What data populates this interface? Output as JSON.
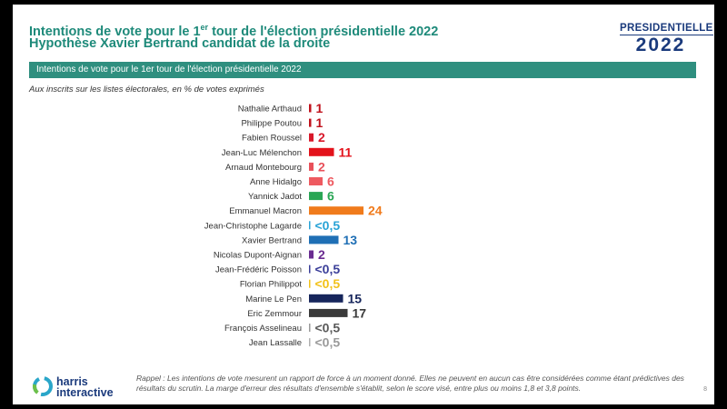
{
  "header": {
    "title_line1_a": "Intentions de vote pour le 1",
    "title_line1_sup": "er",
    "title_line1_b": " tour de l'élection présidentielle 2022",
    "title_line2": "Hypothèse Xavier Bertrand candidat de la droite"
  },
  "logo": {
    "top": "PRESIDENTIELLE",
    "year": "2022"
  },
  "band": {
    "text": "Intentions de vote pour le 1er tour de l'élection présidentielle 2022"
  },
  "note": "Aux inscrits sur les listes électorales, en % de votes exprimés",
  "brand": {
    "name_line1": "harris",
    "name_line2": "interactive"
  },
  "footer": {
    "text": "Rappel : Les intentions de vote mesurent un rapport de force à un moment donné. Elles ne peuvent en aucun cas être considérées comme étant prédictives des résultats du scrutin. La marge d'erreur des résultats d'ensemble s'établit, selon le score visé, entre plus ou moins 1,8 et 3,8 points."
  },
  "page_number": "8",
  "chart_data": {
    "type": "bar",
    "orientation": "horizontal",
    "categories": [
      "Nathalie Arthaud",
      "Philippe Poutou",
      "Fabien Roussel",
      "Jean-Luc Mélenchon",
      "Arnaud Montebourg",
      "Anne Hidalgo",
      "Yannick Jadot",
      "Emmanuel Macron",
      "Jean-Christophe Lagarde",
      "Xavier Bertrand",
      "Nicolas Dupont-Aignan",
      "Jean-Frédéric Poisson",
      "Florian Philippot",
      "Marine Le Pen",
      "Eric Zemmour",
      "François Asselineau",
      "Jean Lassalle"
    ],
    "values": [
      1,
      1,
      2,
      11,
      2,
      6,
      6,
      24,
      0.5,
      13,
      2,
      0.5,
      0.5,
      15,
      17,
      0.5,
      0.5
    ],
    "labels": [
      "1",
      "1",
      "2",
      "11",
      "2",
      "6",
      "6",
      "24",
      "<0,5",
      "13",
      "2",
      "<0,5",
      "<0,5",
      "15",
      "17",
      "<0,5",
      "<0,5"
    ],
    "colors": [
      "#c0121c",
      "#c0121c",
      "#d8182a",
      "#e3121b",
      "#e8505a",
      "#ee5a60",
      "#2aa655",
      "#f07b1c",
      "#29a3d6",
      "#1f6fb5",
      "#6a2c91",
      "#3b3f99",
      "#f2c21a",
      "#16255b",
      "#3a3a3a",
      "#9a9a9a",
      "#b0b0b0"
    ],
    "value_colors": [
      "#c0121c",
      "#c0121c",
      "#d8182a",
      "#e3121b",
      "#e8505a",
      "#ee5a60",
      "#2aa655",
      "#f07b1c",
      "#29a3d6",
      "#1f6fb5",
      "#6a2c91",
      "#3b3f99",
      "#f2c21a",
      "#16255b",
      "#3a3a3a",
      "#5a5a5a",
      "#9a9a9a"
    ],
    "xlim": [
      0,
      24
    ],
    "grid": false,
    "legend": "none"
  }
}
